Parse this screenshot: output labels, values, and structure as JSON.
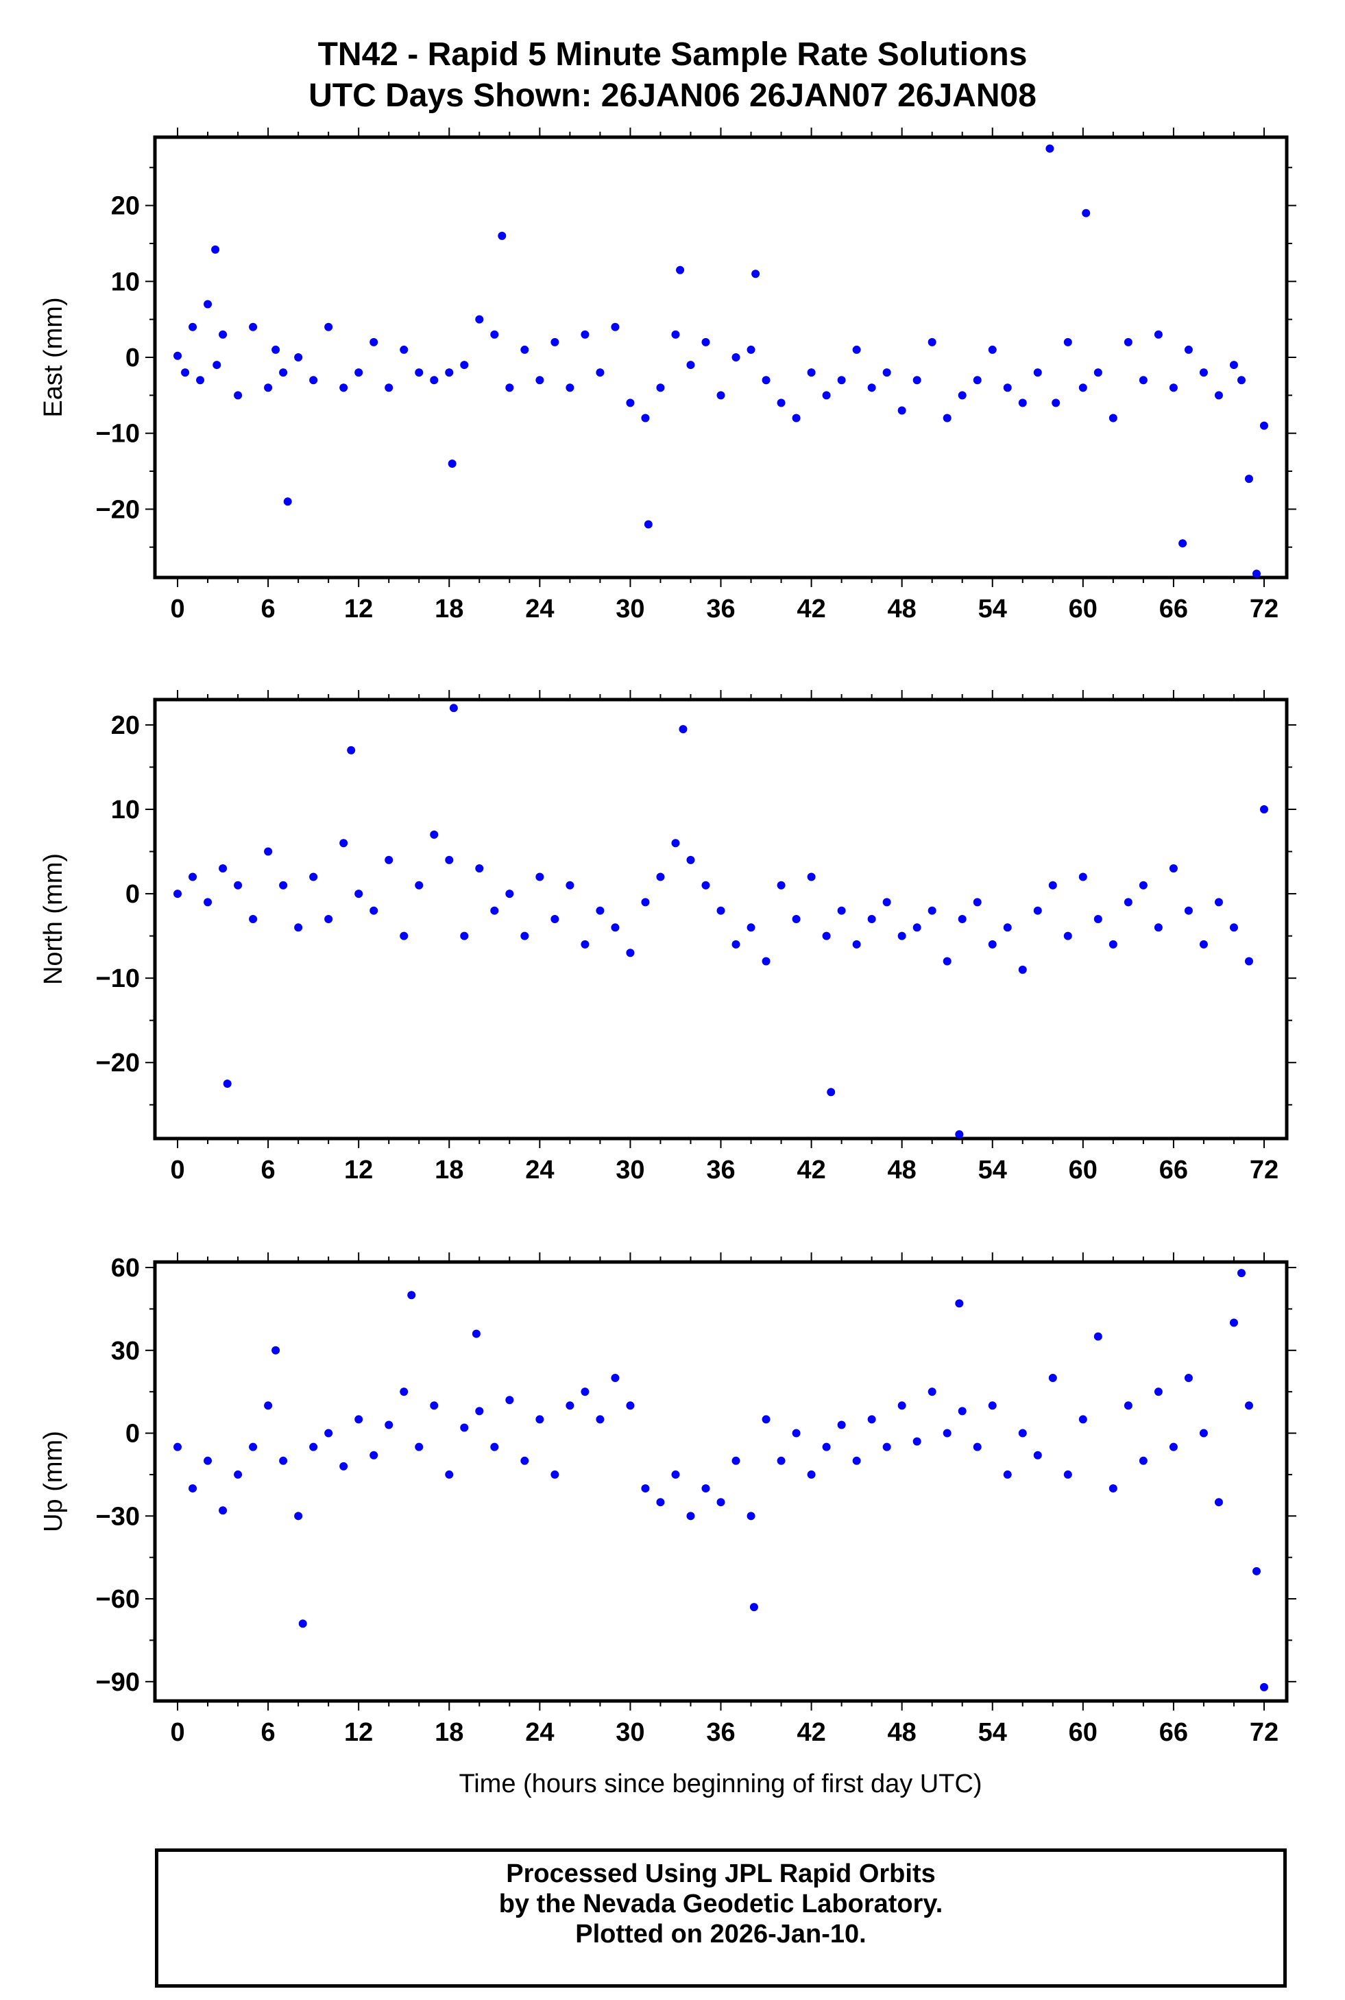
{
  "title": {
    "line1": "TN42 - Rapid 5 Minute Sample Rate Solutions",
    "line2": "UTC Days Shown:  26JAN06 26JAN07 26JAN08"
  },
  "xlabel": "Time (hours since beginning of first day UTC)",
  "footer": {
    "line1": "Processed Using JPL Rapid Orbits",
    "line2": "by the Nevada Geodetic Laboratory.",
    "line3": "Plotted on 2026-Jan-10."
  },
  "colors": {
    "points": "#0000ff",
    "axes": "#000000"
  },
  "chart_data": [
    {
      "type": "scatter",
      "ylabel": "East (mm)",
      "xlim": [
        -1.5,
        73.5
      ],
      "ylim": [
        -29,
        29
      ],
      "xticks": [
        0,
        6,
        12,
        18,
        24,
        30,
        36,
        42,
        48,
        54,
        60,
        66,
        72
      ],
      "yticks": [
        -20,
        -10,
        0,
        10,
        20
      ],
      "grid": false,
      "x": [
        0.0,
        0.5,
        1.0,
        1.5,
        2.0,
        2.5,
        2.6,
        3.0,
        4.0,
        5.0,
        6.0,
        6.5,
        7.0,
        7.3,
        8.0,
        9.0,
        10.0,
        11.0,
        12.0,
        13.0,
        14.0,
        15.0,
        16.0,
        17.0,
        18.0,
        18.2,
        19.0,
        20.0,
        21.0,
        21.5,
        22.0,
        23.0,
        24.0,
        25.0,
        26.0,
        27.0,
        28.0,
        29.0,
        30.0,
        31.0,
        31.2,
        32.0,
        33.0,
        33.3,
        34.0,
        35.0,
        36.0,
        37.0,
        38.0,
        38.3,
        39.0,
        40.0,
        41.0,
        42.0,
        43.0,
        44.0,
        45.0,
        46.0,
        47.0,
        48.0,
        49.0,
        50.0,
        51.0,
        52.0,
        53.0,
        54.0,
        55.0,
        56.0,
        57.0,
        57.8,
        58.2,
        59.0,
        60.0,
        60.2,
        61.0,
        62.0,
        63.0,
        64.0,
        65.0,
        66.0,
        66.6,
        67.0,
        68.0,
        69.0,
        70.0,
        70.5,
        71.0,
        71.5,
        72.0
      ],
      "y": [
        0.2,
        -2,
        4,
        -3,
        7,
        14.2,
        -1,
        3,
        -5,
        4,
        -4,
        1,
        -2,
        -19,
        0,
        -3,
        4,
        -4,
        -2,
        2,
        -4,
        1,
        -2,
        -3,
        -2,
        -14,
        -1,
        5,
        3,
        16,
        -4,
        1,
        -3,
        2,
        -4,
        3,
        -2,
        4,
        -6,
        -8,
        -22,
        -4,
        3,
        11.5,
        -1,
        2,
        -5,
        0,
        1,
        11,
        -3,
        -6,
        -8,
        -2,
        -5,
        -3,
        1,
        -4,
        -2,
        -7,
        -3,
        2,
        -8,
        -5,
        -3,
        1,
        -4,
        -6,
        -2,
        27.5,
        -6,
        2,
        -4,
        19,
        -2,
        -8,
        2,
        -3,
        3,
        -4,
        -24.5,
        1,
        -2,
        -5,
        -1,
        -3,
        -16,
        -28.5,
        -9
      ]
    },
    {
      "type": "scatter",
      "ylabel": "North (mm)",
      "xlim": [
        -1.5,
        73.5
      ],
      "ylim": [
        -29,
        23
      ],
      "xticks": [
        0,
        6,
        12,
        18,
        24,
        30,
        36,
        42,
        48,
        54,
        60,
        66,
        72
      ],
      "yticks": [
        -20,
        -10,
        0,
        10,
        20
      ],
      "grid": false,
      "x": [
        0.0,
        1.0,
        2.0,
        3.0,
        3.3,
        4.0,
        5.0,
        6.0,
        7.0,
        8.0,
        9.0,
        10.0,
        11.0,
        11.5,
        12.0,
        13.0,
        14.0,
        15.0,
        16.0,
        17.0,
        18.0,
        18.3,
        19.0,
        20.0,
        21.0,
        22.0,
        23.0,
        24.0,
        25.0,
        26.0,
        27.0,
        28.0,
        29.0,
        30.0,
        31.0,
        32.0,
        33.0,
        33.5,
        34.0,
        35.0,
        36.0,
        37.0,
        38.0,
        39.0,
        40.0,
        41.0,
        42.0,
        43.0,
        43.3,
        44.0,
        45.0,
        46.0,
        47.0,
        48.0,
        49.0,
        50.0,
        51.0,
        51.8,
        52.0,
        53.0,
        54.0,
        55.0,
        56.0,
        57.0,
        58.0,
        59.0,
        60.0,
        61.0,
        62.0,
        63.0,
        64.0,
        65.0,
        66.0,
        67.0,
        68.0,
        69.0,
        70.0,
        71.0,
        72.0
      ],
      "y": [
        0,
        2,
        -1,
        3,
        -22.5,
        1,
        -3,
        5,
        1,
        -4,
        2,
        -3,
        6,
        17,
        0,
        -2,
        4,
        -5,
        1,
        7,
        4,
        22,
        -5,
        3,
        -2,
        0,
        -5,
        2,
        -3,
        1,
        -6,
        -2,
        -4,
        -7,
        -1,
        2,
        6,
        19.5,
        4,
        1,
        -2,
        -6,
        -4,
        -8,
        1,
        -3,
        2,
        -5,
        -23.5,
        -2,
        -6,
        -3,
        -1,
        -5,
        -4,
        -2,
        -8,
        -28.5,
        -3,
        -1,
        -6,
        -4,
        -9,
        -2,
        1,
        -5,
        2,
        -3,
        -6,
        -1,
        1,
        -4,
        3,
        -2,
        -6,
        -1,
        -4,
        -8,
        10
      ]
    },
    {
      "type": "scatter",
      "ylabel": "Up (mm)",
      "xlim": [
        -1.5,
        73.5
      ],
      "ylim": [
        -97,
        62
      ],
      "xticks": [
        0,
        6,
        12,
        18,
        24,
        30,
        36,
        42,
        48,
        54,
        60,
        66,
        72
      ],
      "yticks": [
        -90,
        -60,
        -30,
        0,
        30,
        60
      ],
      "grid": false,
      "x": [
        0.0,
        1.0,
        2.0,
        3.0,
        4.0,
        5.0,
        6.0,
        6.5,
        7.0,
        8.0,
        8.3,
        9.0,
        10.0,
        11.0,
        12.0,
        13.0,
        14.0,
        15.0,
        15.5,
        16.0,
        17.0,
        18.0,
        19.0,
        19.8,
        20.0,
        21.0,
        22.0,
        23.0,
        24.0,
        25.0,
        26.0,
        27.0,
        28.0,
        29.0,
        30.0,
        31.0,
        32.0,
        33.0,
        34.0,
        35.0,
        36.0,
        37.0,
        38.0,
        38.2,
        39.0,
        40.0,
        41.0,
        42.0,
        43.0,
        44.0,
        45.0,
        46.0,
        47.0,
        48.0,
        49.0,
        50.0,
        51.0,
        51.8,
        52.0,
        53.0,
        54.0,
        55.0,
        56.0,
        57.0,
        58.0,
        59.0,
        60.0,
        61.0,
        62.0,
        63.0,
        64.0,
        65.0,
        66.0,
        67.0,
        68.0,
        69.0,
        70.0,
        70.5,
        71.0,
        71.5,
        72.0
      ],
      "y": [
        -5,
        -20,
        -10,
        -28,
        -15,
        -5,
        10,
        30,
        -10,
        -30,
        -69,
        -5,
        0,
        -12,
        5,
        -8,
        3,
        15,
        50,
        -5,
        10,
        -15,
        2,
        36,
        8,
        -5,
        12,
        -10,
        5,
        -15,
        10,
        15,
        5,
        20,
        10,
        -20,
        -25,
        -15,
        -30,
        -20,
        -25,
        -10,
        -30,
        -63,
        5,
        -10,
        0,
        -15,
        -5,
        3,
        -10,
        5,
        -5,
        10,
        -3,
        15,
        0,
        47,
        8,
        -5,
        10,
        -15,
        0,
        -8,
        20,
        -15,
        5,
        35,
        -20,
        10,
        -10,
        15,
        -5,
        20,
        0,
        -25,
        40,
        58,
        10,
        -50,
        -92
      ]
    }
  ]
}
